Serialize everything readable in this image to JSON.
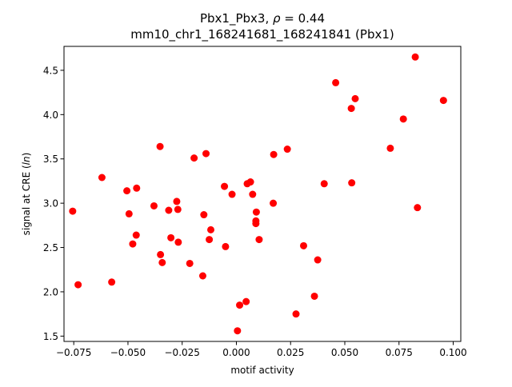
{
  "chart_data": {
    "type": "scatter",
    "title_line1_prefix": "Pbx1_Pbx3, ",
    "title_line1_rho": "ρ",
    "title_line1_suffix": " = 0.44",
    "title_line2": "mm10_chr1_168241681_168241841 (Pbx1)",
    "xlabel": "motif activity",
    "ylabel_prefix": "signal at CRE (",
    "ylabel_italic": "ln",
    "ylabel_suffix": ")",
    "xlim": [
      -0.0795,
      0.1035
    ],
    "ylim": [
      1.44,
      4.77
    ],
    "xticks": [
      -0.075,
      -0.05,
      -0.025,
      0.0,
      0.025,
      0.05,
      0.075,
      0.1
    ],
    "xtick_labels": [
      "−0.075",
      "−0.050",
      "−0.025",
      "0.000",
      "0.025",
      "0.050",
      "0.075",
      "0.100"
    ],
    "yticks": [
      1.5,
      2.0,
      2.5,
      3.0,
      3.5,
      4.0,
      4.5
    ],
    "ytick_labels": [
      "1.5",
      "2.0",
      "2.5",
      "3.0",
      "3.5",
      "4.0",
      "4.5"
    ],
    "grid": false,
    "legend": "none",
    "marker_color": "#ff0000",
    "points": [
      {
        "x": -0.0755,
        "y": 2.91
      },
      {
        "x": -0.073,
        "y": 2.08
      },
      {
        "x": -0.062,
        "y": 3.29
      },
      {
        "x": -0.0575,
        "y": 2.11
      },
      {
        "x": -0.0505,
        "y": 3.14
      },
      {
        "x": -0.0495,
        "y": 2.88
      },
      {
        "x": -0.0478,
        "y": 2.54
      },
      {
        "x": -0.0462,
        "y": 2.64
      },
      {
        "x": -0.046,
        "y": 3.17
      },
      {
        "x": -0.038,
        "y": 2.97
      },
      {
        "x": -0.0352,
        "y": 3.64
      },
      {
        "x": -0.035,
        "y": 2.42
      },
      {
        "x": -0.0342,
        "y": 2.33
      },
      {
        "x": -0.0312,
        "y": 2.92
      },
      {
        "x": -0.0302,
        "y": 2.61
      },
      {
        "x": -0.0275,
        "y": 3.02
      },
      {
        "x": -0.027,
        "y": 2.93
      },
      {
        "x": -0.0268,
        "y": 2.56
      },
      {
        "x": -0.0215,
        "y": 2.32
      },
      {
        "x": -0.0195,
        "y": 3.51
      },
      {
        "x": -0.0155,
        "y": 2.18
      },
      {
        "x": -0.015,
        "y": 2.87
      },
      {
        "x": -0.014,
        "y": 3.56
      },
      {
        "x": -0.0125,
        "y": 2.59
      },
      {
        "x": -0.0118,
        "y": 2.7
      },
      {
        "x": -0.0055,
        "y": 3.19
      },
      {
        "x": -0.005,
        "y": 2.51
      },
      {
        "x": -0.002,
        "y": 3.1
      },
      {
        "x": 0.0005,
        "y": 1.56
      },
      {
        "x": 0.0015,
        "y": 1.85
      },
      {
        "x": 0.0045,
        "y": 1.89
      },
      {
        "x": 0.005,
        "y": 3.22
      },
      {
        "x": 0.0065,
        "y": 3.24
      },
      {
        "x": 0.0075,
        "y": 3.1
      },
      {
        "x": 0.009,
        "y": 2.8
      },
      {
        "x": 0.009,
        "y": 2.77
      },
      {
        "x": 0.0092,
        "y": 2.9
      },
      {
        "x": 0.0105,
        "y": 2.59
      },
      {
        "x": 0.017,
        "y": 3.0
      },
      {
        "x": 0.0172,
        "y": 3.55
      },
      {
        "x": 0.0235,
        "y": 3.61
      },
      {
        "x": 0.0275,
        "y": 1.75
      },
      {
        "x": 0.031,
        "y": 2.52
      },
      {
        "x": 0.036,
        "y": 1.95
      },
      {
        "x": 0.0375,
        "y": 2.36
      },
      {
        "x": 0.0405,
        "y": 3.22
      },
      {
        "x": 0.0458,
        "y": 4.36
      },
      {
        "x": 0.053,
        "y": 4.07
      },
      {
        "x": 0.0532,
        "y": 3.23
      },
      {
        "x": 0.0548,
        "y": 4.18
      },
      {
        "x": 0.071,
        "y": 3.62
      },
      {
        "x": 0.077,
        "y": 3.95
      },
      {
        "x": 0.0825,
        "y": 4.65
      },
      {
        "x": 0.0835,
        "y": 2.95
      },
      {
        "x": 0.0955,
        "y": 4.16
      }
    ]
  }
}
